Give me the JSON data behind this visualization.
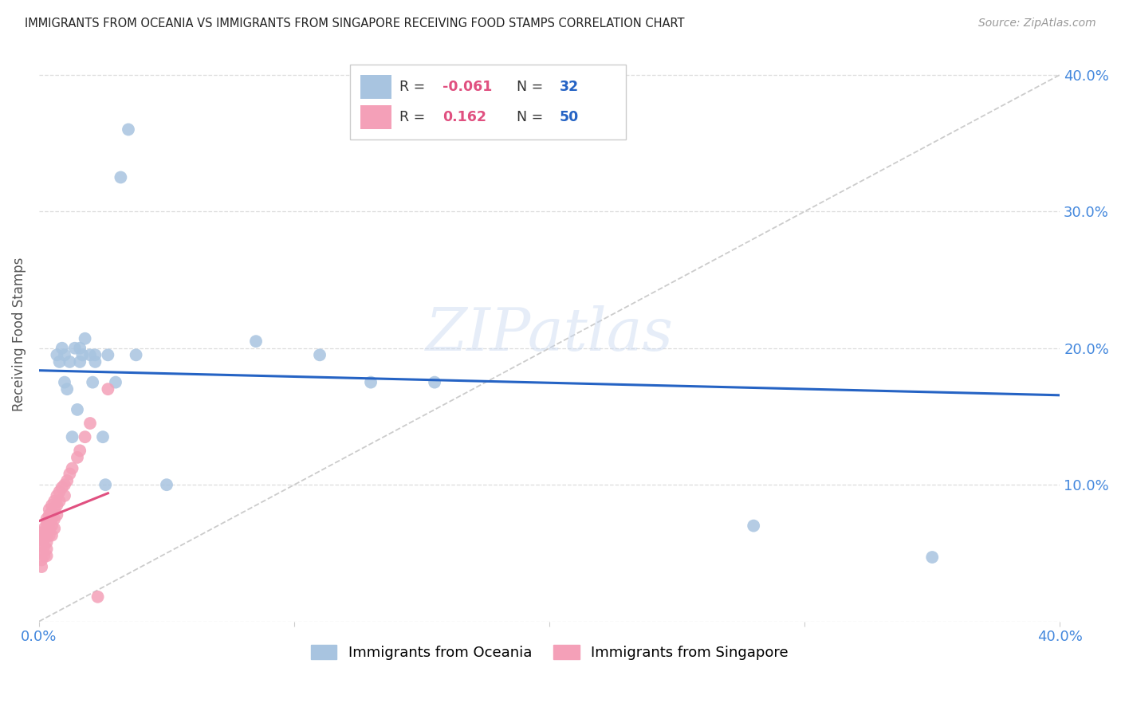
{
  "title": "IMMIGRANTS FROM OCEANIA VS IMMIGRANTS FROM SINGAPORE RECEIVING FOOD STAMPS CORRELATION CHART",
  "source": "Source: ZipAtlas.com",
  "ylabel": "Receiving Food Stamps",
  "watermark": "ZIPatlas",
  "legend_oceania": "Immigrants from Oceania",
  "legend_singapore": "Immigrants from Singapore",
  "R_oceania": "-0.061",
  "N_oceania": "32",
  "R_singapore": "0.162",
  "N_singapore": "50",
  "oceania_color": "#a8c4e0",
  "singapore_color": "#f4a0b8",
  "oceania_line_color": "#2563c4",
  "singapore_line_color": "#e05080",
  "diagonal_color": "#cccccc",
  "grid_color": "#dddddd",
  "title_color": "#222222",
  "axis_label_color": "#4488dd",
  "legend_R_color": "#e05080",
  "legend_N_color": "#2563c4",
  "oceania_x": [
    0.007,
    0.008,
    0.009,
    0.01,
    0.01,
    0.011,
    0.012,
    0.013,
    0.014,
    0.015,
    0.016,
    0.016,
    0.017,
    0.018,
    0.02,
    0.021,
    0.022,
    0.022,
    0.025,
    0.026,
    0.027,
    0.03,
    0.032,
    0.035,
    0.038,
    0.05,
    0.085,
    0.11,
    0.13,
    0.155,
    0.28,
    0.35
  ],
  "oceania_y": [
    0.195,
    0.19,
    0.2,
    0.195,
    0.175,
    0.17,
    0.19,
    0.135,
    0.2,
    0.155,
    0.2,
    0.19,
    0.195,
    0.207,
    0.195,
    0.175,
    0.195,
    0.19,
    0.135,
    0.1,
    0.195,
    0.175,
    0.325,
    0.36,
    0.195,
    0.1,
    0.205,
    0.195,
    0.175,
    0.175,
    0.07,
    0.047
  ],
  "singapore_x": [
    0.0,
    0.0,
    0.001,
    0.001,
    0.001,
    0.001,
    0.001,
    0.002,
    0.002,
    0.002,
    0.002,
    0.002,
    0.003,
    0.003,
    0.003,
    0.003,
    0.003,
    0.003,
    0.003,
    0.004,
    0.004,
    0.004,
    0.004,
    0.004,
    0.005,
    0.005,
    0.005,
    0.005,
    0.005,
    0.006,
    0.006,
    0.006,
    0.006,
    0.007,
    0.007,
    0.007,
    0.008,
    0.008,
    0.009,
    0.01,
    0.01,
    0.011,
    0.012,
    0.013,
    0.015,
    0.016,
    0.018,
    0.02,
    0.023,
    0.027
  ],
  "singapore_y": [
    0.065,
    0.06,
    0.06,
    0.055,
    0.05,
    0.045,
    0.04,
    0.068,
    0.063,
    0.06,
    0.055,
    0.048,
    0.075,
    0.072,
    0.068,
    0.063,
    0.058,
    0.053,
    0.048,
    0.082,
    0.078,
    0.073,
    0.068,
    0.063,
    0.085,
    0.08,
    0.075,
    0.07,
    0.063,
    0.088,
    0.082,
    0.075,
    0.068,
    0.092,
    0.085,
    0.078,
    0.095,
    0.088,
    0.098,
    0.1,
    0.092,
    0.103,
    0.108,
    0.112,
    0.12,
    0.125,
    0.135,
    0.145,
    0.018,
    0.17
  ],
  "xlim": [
    0,
    0.4
  ],
  "ylim": [
    0,
    0.42
  ],
  "ytick_vals": [
    0.0,
    0.1,
    0.2,
    0.3,
    0.4
  ],
  "ytick_right_labels": [
    "",
    "10.0%",
    "20.0%",
    "30.0%",
    "40.0%"
  ],
  "xtick_vals": [
    0.0,
    0.1,
    0.2,
    0.3,
    0.4
  ],
  "xtick_labels": [
    "0.0%",
    "",
    "",
    "",
    "40.0%"
  ],
  "background_color": "#ffffff"
}
